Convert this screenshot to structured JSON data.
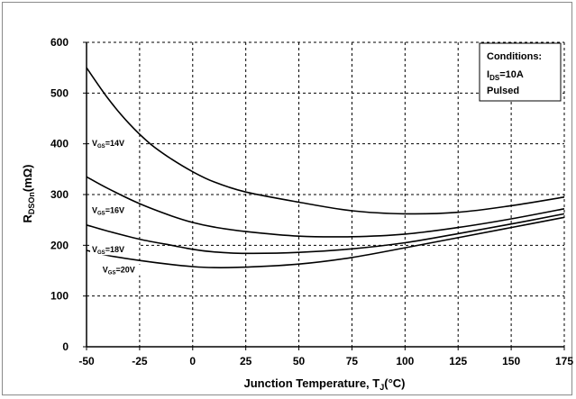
{
  "chart_data": {
    "type": "line",
    "xlabel": {
      "main": "Junction Temperature, T",
      "sub": "J",
      "unit": "(°C)"
    },
    "ylabel": {
      "main": "R",
      "sub": "DSOn",
      "unit": "(mΩ)"
    },
    "xlim": [
      -50,
      175
    ],
    "ylim": [
      0,
      600
    ],
    "x_ticks": [
      -50,
      -25,
      0,
      25,
      50,
      75,
      100,
      125,
      150,
      175
    ],
    "y_ticks": [
      0,
      100,
      200,
      300,
      400,
      500,
      600
    ],
    "grid": "dashed",
    "conditions": {
      "title": "Conditions:",
      "line1_main": "I",
      "line1_sub": "DS",
      "line1_rest": "=10A",
      "line2": "Pulsed"
    },
    "series": [
      {
        "label_main": "V",
        "label_sub": "GS",
        "label_rest": "=14V",
        "x": [
          -50,
          -40,
          -30,
          -20,
          -10,
          0,
          10,
          25,
          50,
          75,
          100,
          125,
          150,
          175
        ],
        "y": [
          550,
          490,
          440,
          400,
          370,
          345,
          325,
          305,
          285,
          268,
          262,
          265,
          278,
          295
        ]
      },
      {
        "label_main": "V",
        "label_sub": "GS",
        "label_rest": "=16V",
        "x": [
          -50,
          -40,
          -25,
          -10,
          0,
          10,
          25,
          50,
          75,
          100,
          125,
          150,
          175
        ],
        "y": [
          335,
          312,
          282,
          258,
          245,
          236,
          227,
          218,
          217,
          222,
          235,
          252,
          272
        ]
      },
      {
        "label_main": "V",
        "label_sub": "GS",
        "label_rest": "=18V",
        "x": [
          -50,
          -40,
          -25,
          -10,
          0,
          10,
          25,
          50,
          75,
          100,
          125,
          150,
          175
        ],
        "y": [
          240,
          228,
          212,
          200,
          192,
          187,
          184,
          186,
          193,
          205,
          223,
          242,
          262
        ]
      },
      {
        "label_main": "V",
        "label_sub": "GS",
        "label_rest": "=20V",
        "x": [
          -50,
          -40,
          -25,
          -10,
          0,
          10,
          25,
          50,
          75,
          100,
          125,
          150,
          175
        ],
        "y": [
          190,
          180,
          170,
          162,
          158,
          156,
          157,
          163,
          176,
          195,
          215,
          235,
          255
        ]
      }
    ],
    "series_label_positions_x": [
      -50,
      -50,
      -50,
      -45
    ]
  }
}
